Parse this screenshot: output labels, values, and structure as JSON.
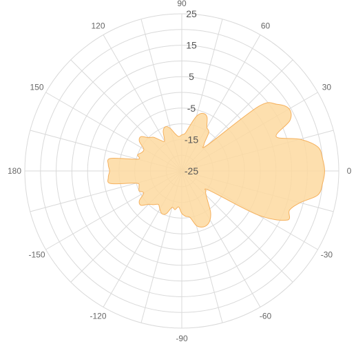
{
  "chart_data": {
    "type": "area",
    "coordinate_system": "polar",
    "angle_unit": "degrees",
    "angle_ticks": [
      0,
      30,
      60,
      90,
      120,
      150,
      180,
      -150,
      -120,
      -90,
      -60,
      -30
    ],
    "angle_tick_labels": [
      "0",
      "30",
      "60",
      "90",
      "120",
      "150",
      "180",
      "-150",
      "-120",
      "-90",
      "-60",
      "-30"
    ],
    "radial_range": [
      -25,
      25
    ],
    "radial_ticks": [
      -25,
      -15,
      -5,
      5,
      15,
      25
    ],
    "radial_tick_labels": [
      "-25",
      "-15",
      "-5",
      "5",
      "15",
      "25"
    ],
    "grid": true,
    "colors": {
      "fill": "#fdd9a0",
      "stroke": "#f5b05c",
      "grid": "#d9d9d9"
    },
    "series": [
      {
        "angles": [
          0,
          5,
          10,
          15,
          20,
          25,
          30,
          35,
          40,
          45,
          50,
          55,
          60,
          65,
          70,
          75,
          80,
          85,
          90,
          95,
          100,
          105,
          110,
          115,
          120,
          125,
          130,
          135,
          140,
          145,
          150,
          155,
          160,
          165,
          170,
          175,
          180,
          -175,
          -170,
          -165,
          -160,
          -155,
          -150,
          -145,
          -140,
          -135,
          -130,
          -125,
          -120,
          -115,
          -110,
          -105,
          -100,
          -95,
          -90,
          -85,
          -80,
          -75,
          -70,
          -65,
          -60,
          -55,
          -50,
          -45,
          -40,
          -35,
          -30,
          -25,
          -20,
          -15,
          -10,
          -5
        ],
        "values": [
          20.5,
          20,
          19,
          14,
          7,
          13,
          14.5,
          12,
          7,
          -13,
          -14,
          -10,
          -9,
          -6,
          -5.5,
          -7,
          -10.5,
          -13,
          -13.5,
          -14,
          -13,
          -11,
          -10,
          -11,
          -14,
          -13,
          -11,
          -10,
          -8,
          -8.5,
          -11,
          -11,
          -10,
          -10.5,
          -2,
          -1.5,
          -2,
          -1.5,
          -2,
          -10,
          -10.5,
          -10,
          -11,
          -8.5,
          -8,
          -10,
          -11,
          -12,
          -11,
          -10,
          -10.5,
          -13,
          -12.5,
          -13.5,
          -11.5,
          -10.5,
          -10,
          -7,
          -6,
          -6,
          -7,
          -9,
          -12,
          -14,
          -15,
          -14,
          3,
          12,
          11.5,
          14,
          19,
          20
        ]
      }
    ]
  }
}
